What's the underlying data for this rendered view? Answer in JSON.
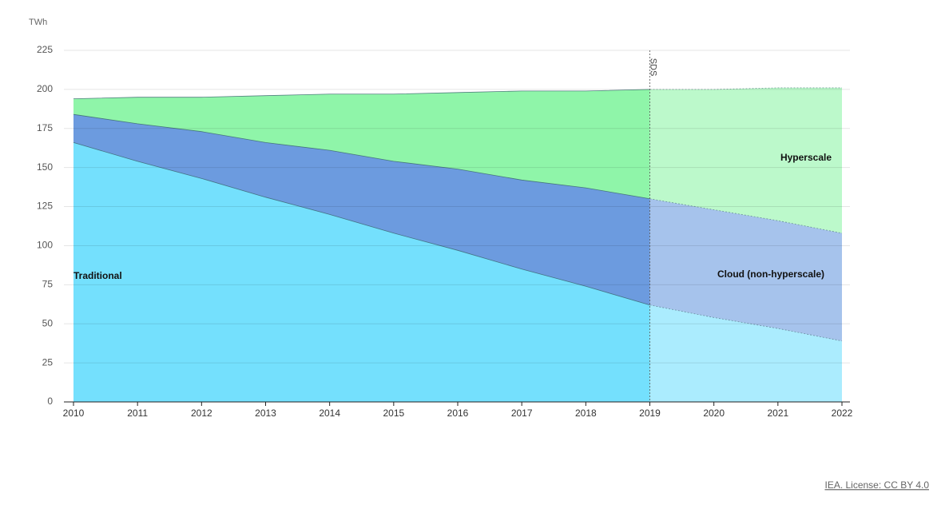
{
  "chart_data": {
    "type": "stacked-area",
    "y_unit": "TWh",
    "categories": [
      "2010",
      "2011",
      "2012",
      "2013",
      "2014",
      "2015",
      "2016",
      "2017",
      "2018",
      "2019",
      "2020",
      "2021",
      "2022"
    ],
    "series": [
      {
        "name": "Traditional",
        "color": "#74e0fd",
        "values": [
          166,
          154,
          143,
          131,
          120,
          108,
          97,
          85,
          74,
          62,
          54,
          47,
          39
        ]
      },
      {
        "name": "Cloud (non-hyperscale)",
        "color": "#6c9bdf",
        "values": [
          18,
          24,
          30,
          35,
          41,
          46,
          52,
          57,
          63,
          68,
          69,
          69,
          69
        ]
      },
      {
        "name": "Hyperscale",
        "color": "#8ff5a9",
        "values": [
          10,
          17,
          22,
          30,
          36,
          43,
          49,
          57,
          62,
          70,
          77,
          85,
          93
        ]
      }
    ],
    "ylim": [
      0,
      225
    ],
    "yticks": [
      0,
      25,
      50,
      75,
      100,
      125,
      150,
      175,
      200,
      225
    ],
    "grid": true,
    "annotations": [
      {
        "text": "SDS",
        "x": "2019"
      }
    ],
    "source": "IEA. License: CC BY 4.0"
  }
}
